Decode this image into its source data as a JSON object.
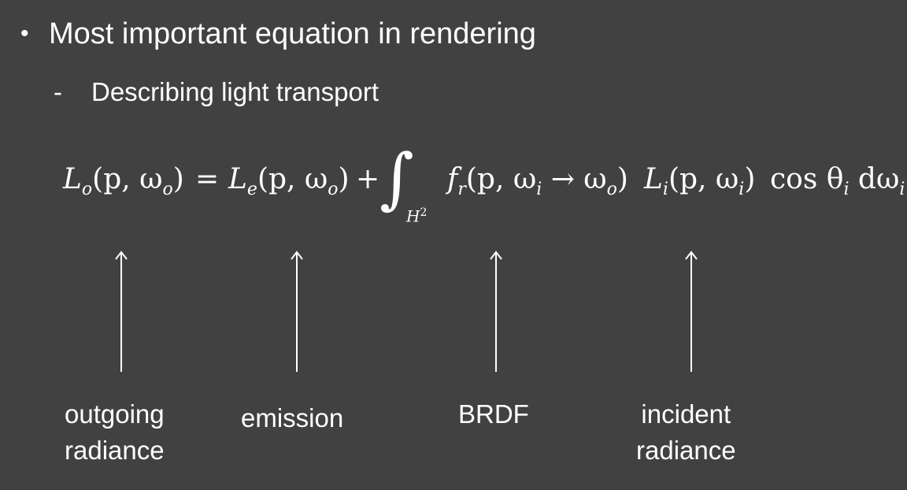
{
  "slide": {
    "bullet_symbol": "•",
    "bullet_text": "Most important equation in rendering",
    "sub_symbol": "-",
    "sub_text": "Describing light transport"
  },
  "equation": {
    "lhs_symbol": "L",
    "lhs_sub": "o",
    "lhs_args": "(p, ω",
    "lhs_args_sub": "o",
    "lhs_close": ")",
    "equals": "=",
    "emit_symbol": "L",
    "emit_sub": "e",
    "emit_args": "(p, ω",
    "emit_args_sub": "o",
    "emit_close": ")",
    "plus": "+",
    "integral": "∫",
    "domain": "H",
    "domain_sup": "2",
    "brdf_symbol": "f",
    "brdf_sub": "r",
    "brdf_args": "(p, ω",
    "brdf_args_sub1": "i",
    "brdf_arrow": " → ω",
    "brdf_args_sub2": "o",
    "brdf_close": ")",
    "inc_symbol": "L",
    "inc_sub": "i",
    "inc_args": "(p, ω",
    "inc_args_sub": "i",
    "inc_close": ")",
    "cos": "cos θ",
    "cos_sub": "i",
    "dw": " dω",
    "dw_sub": "i"
  },
  "labels": {
    "outgoing_line1": "outgoing",
    "outgoing_line2": "radiance",
    "emission": "emission",
    "brdf": "BRDF",
    "incident_line1": "incident",
    "incident_line2": "radiance"
  }
}
